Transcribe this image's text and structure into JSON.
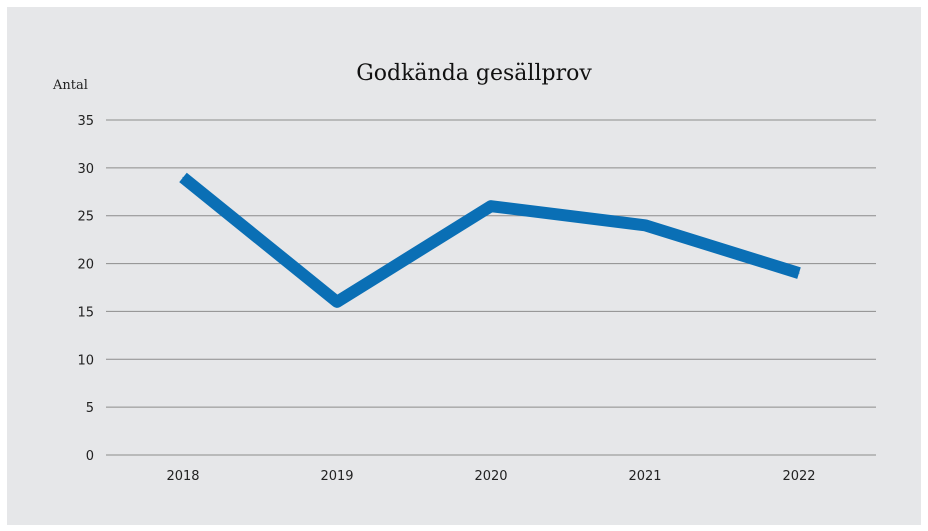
{
  "chart_data": {
    "type": "line",
    "title": "Godkända gesällprov",
    "ylabel": "Antal",
    "xlabel": "",
    "categories": [
      "2018",
      "2019",
      "2020",
      "2021",
      "2022"
    ],
    "series": [
      {
        "values": [
          29,
          16,
          26,
          24,
          19
        ]
      }
    ],
    "ylim": [
      0,
      35
    ],
    "yticks": [
      "0",
      "5",
      "10",
      "15",
      "20",
      "25",
      "30",
      "35"
    ],
    "grid": true,
    "legend": "none",
    "colors": {
      "background": "#e6e7e9",
      "line": "#0a6fb5",
      "grid": "#8c8c8c"
    }
  }
}
